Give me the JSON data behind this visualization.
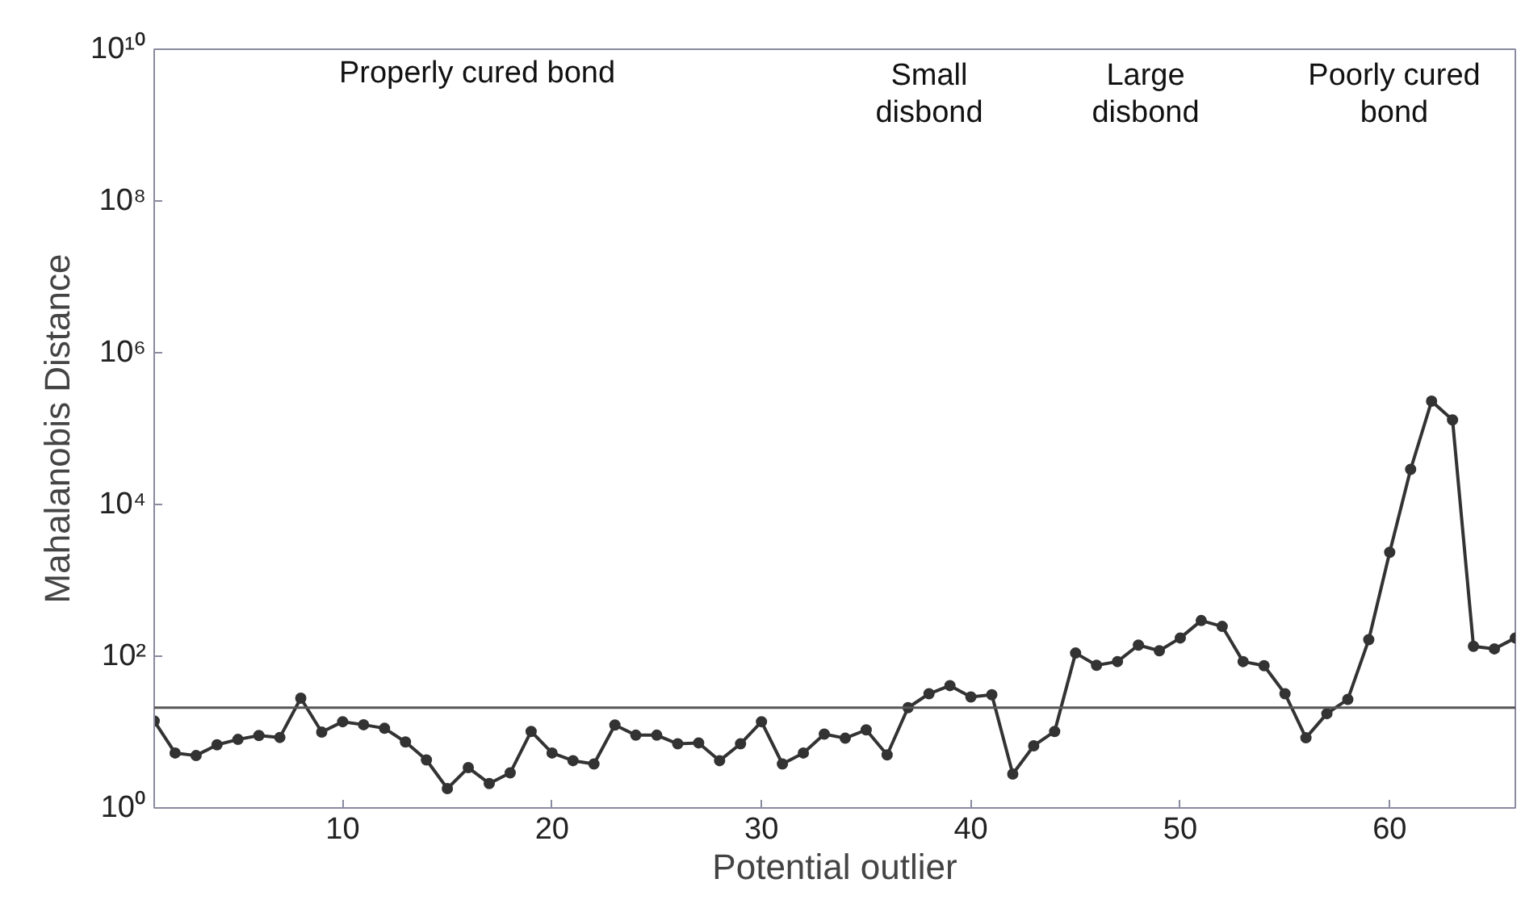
{
  "chart_data": {
    "type": "line",
    "xlabel": "Potential outlier",
    "ylabel": "Mahalanobis Distance",
    "x": [
      1,
      2,
      3,
      4,
      5,
      6,
      7,
      8,
      9,
      10,
      11,
      12,
      13,
      14,
      15,
      16,
      17,
      18,
      19,
      20,
      21,
      22,
      23,
      24,
      25,
      26,
      27,
      28,
      29,
      30,
      31,
      32,
      33,
      34,
      35,
      36,
      37,
      38,
      39,
      40,
      41,
      42,
      43,
      44,
      45,
      46,
      47,
      48,
      49,
      50,
      51,
      52,
      53,
      54,
      55,
      56,
      57,
      58,
      59,
      60,
      61,
      62,
      63,
      64,
      65,
      66
    ],
    "series": [
      {
        "color": "#333333",
        "values": [
          14,
          5.3,
          4.9,
          6.8,
          8,
          9,
          8.5,
          28,
          10,
          13.7,
          12.5,
          11.2,
          7.4,
          4.3,
          1.8,
          3.4,
          2.1,
          2.9,
          10.2,
          5.3,
          4.2,
          3.8,
          12.4,
          9.1,
          9.1,
          7,
          7.2,
          4.2,
          7,
          13.7,
          3.8,
          5.3,
          9.4,
          8.3,
          10.7,
          5,
          21,
          32,
          41,
          29,
          31,
          2.8,
          6.6,
          10.2,
          110,
          76,
          85,
          140,
          118,
          174,
          295,
          247,
          85,
          75,
          32,
          8.4,
          17.5,
          27,
          165,
          2340,
          29000,
          230000,
          130000,
          135,
          125,
          174
        ]
      }
    ],
    "log": "y",
    "marker": "circle",
    "line_style": "solid",
    "grid": false,
    "xlim": [
      1,
      66
    ],
    "ylim": [
      1,
      10000000000
    ],
    "xticks": [
      10,
      20,
      30,
      40,
      50,
      60
    ],
    "yticks": [
      {
        "value": 1,
        "label": "10⁰"
      },
      {
        "value": 100,
        "label": "10²"
      },
      {
        "value": 10000,
        "label": "10⁴"
      },
      {
        "value": 1000000,
        "label": "10⁶"
      },
      {
        "value": 100000000,
        "label": "10⁸"
      },
      {
        "value": 10000000000,
        "label": "10¹⁰"
      }
    ],
    "ref_lines": [
      {
        "axis": "y",
        "value": 21,
        "label": null,
        "color": "#555555"
      }
    ],
    "annotations": [
      "Properly cured bond",
      "Small\ndisbond",
      "Large\ndisbond",
      "Poorly cured\nbond"
    ]
  }
}
